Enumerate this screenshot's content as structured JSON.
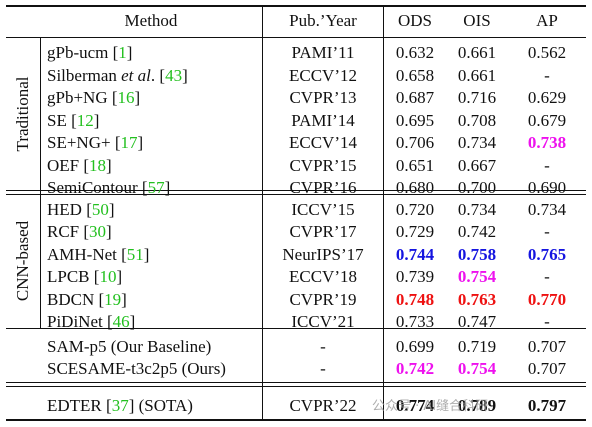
{
  "header": {
    "method": "Method",
    "pub_year": "Pub.’Year",
    "ods": "ODS",
    "ois": "OIS",
    "ap": "AP"
  },
  "groups": {
    "traditional": "Traditional",
    "cnn": "CNN-based"
  },
  "rows": [
    {
      "pre": "gPb-ucm [",
      "ref": "1",
      "post": "]",
      "pub": "PAMI’11",
      "ods": "0.632",
      "ois": "0.661",
      "ap": "0.562"
    },
    {
      "pre": "Silberman ",
      "em": "et al",
      "mid": ". [",
      "ref": "43",
      "post": "]",
      "pub": "ECCV’12",
      "ods": "0.658",
      "ois": "0.661",
      "ap": "-"
    },
    {
      "pre": "gPb+NG [",
      "ref": "16",
      "post": "]",
      "pub": "CVPR’13",
      "ods": "0.687",
      "ois": "0.716",
      "ap": "0.629"
    },
    {
      "pre": "SE [",
      "ref": "12",
      "post": "]",
      "pub": "PAMI’14",
      "ods": "0.695",
      "ois": "0.708",
      "ap": "0.679"
    },
    {
      "pre": "SE+NG+ [",
      "ref": "17",
      "post": "]",
      "pub": "ECCV’14",
      "ods": "0.706",
      "ois": "0.734",
      "ap": "0.738"
    },
    {
      "pre": "OEF [",
      "ref": "18",
      "post": "]",
      "pub": "CVPR’15",
      "ods": "0.651",
      "ois": "0.667",
      "ap": "-"
    },
    {
      "pre": "SemiContour [",
      "ref": "57",
      "post": "]",
      "pub": "CVPR’16",
      "ods": "0.680",
      "ois": "0.700",
      "ap": "0.690"
    },
    {
      "pre": "HED [",
      "ref": "50",
      "post": "]",
      "pub": "ICCV’15",
      "ods": "0.720",
      "ois": "0.734",
      "ap": "0.734"
    },
    {
      "pre": "RCF [",
      "ref": "30",
      "post": "]",
      "pub": "CVPR’17",
      "ods": "0.729",
      "ois": "0.742",
      "ap": "-"
    },
    {
      "pre": "AMH-Net [",
      "ref": "51",
      "post": "]",
      "pub": "NeurIPS’17",
      "ods": "0.744",
      "ois": "0.758",
      "ap": "0.765"
    },
    {
      "pre": "LPCB [",
      "ref": "10",
      "post": "]",
      "pub": "ECCV’18",
      "ods": "0.739",
      "ois": "0.754",
      "ap": "-"
    },
    {
      "pre": "BDCN [",
      "ref": "19",
      "post": "]",
      "pub": "CVPR’19",
      "ods": "0.748",
      "ois": "0.763",
      "ap": "0.770"
    },
    {
      "pre": "PiDiNet [",
      "ref": "46",
      "post": "]",
      "pub": "ICCV’21",
      "ods": "0.733",
      "ois": "0.747",
      "ap": "-"
    },
    {
      "pre": "SAM-p5 (Our Baseline)",
      "pub": "-",
      "ods": "0.699",
      "ois": "0.719",
      "ap": "0.707"
    },
    {
      "pre": "SCESAME-t3c2p5 (Ours)",
      "pub": "-",
      "ods": "0.742",
      "ois": "0.754",
      "ap": "0.707"
    },
    {
      "pre": "EDTER [",
      "ref": "37",
      "post": "] (SOTA)",
      "pub": "CVPR’22",
      "ods": "0.774",
      "ois": "0.789",
      "ap": "0.797"
    }
  ],
  "highlight_colors": {
    "red": "#ee1111",
    "blue": "#1515e0",
    "magenta": "#ee11ee",
    "citation": "#22c01e"
  },
  "watermark": "公众号 · AI缝合科研"
}
